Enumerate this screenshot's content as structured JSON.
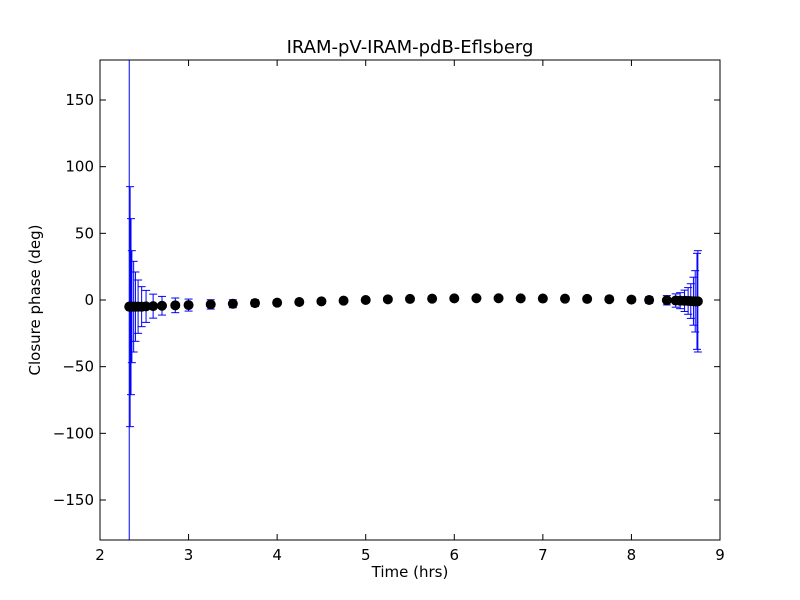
{
  "colors": {
    "errorbar": "#0000ff",
    "marker": "#000000",
    "axes": "#000000",
    "background": "#ffffff"
  },
  "chart_data": {
    "type": "scatter",
    "title": "IRAM-pV-IRAM-pdB-Eflsberg",
    "xlabel": "Time (hrs)",
    "ylabel": "Closure phase (deg)",
    "xlim": [
      2,
      9
    ],
    "ylim": [
      -180,
      180
    ],
    "xticks": [
      2,
      3,
      4,
      5,
      6,
      7,
      8,
      9
    ],
    "yticks": [
      -150,
      -100,
      -50,
      0,
      50,
      100,
      150
    ],
    "xtick_labels": [
      "2",
      "3",
      "4",
      "5",
      "6",
      "7",
      "8",
      "9"
    ],
    "ytick_labels": [
      "−150",
      "−100",
      "−50",
      "0",
      "50",
      "100",
      "150"
    ],
    "grid": false,
    "legend": "none",
    "series": [
      {
        "marker": "circle",
        "errorbars": true,
        "x": [
          2.33,
          2.34,
          2.35,
          2.36,
          2.38,
          2.4,
          2.43,
          2.47,
          2.52,
          2.6,
          2.7,
          2.85,
          3.0,
          3.25,
          3.5,
          3.75,
          4.0,
          4.25,
          4.5,
          4.75,
          5.0,
          5.25,
          5.5,
          5.75,
          6.0,
          6.25,
          6.5,
          6.75,
          7.0,
          7.25,
          7.5,
          7.75,
          8.0,
          8.2,
          8.4,
          8.5,
          8.55,
          8.6,
          8.64,
          8.67,
          8.7,
          8.72,
          8.74,
          8.75
        ],
        "y": [
          -5,
          -5,
          -5,
          -5,
          -5,
          -5,
          -5,
          -5,
          -4.8,
          -4.6,
          -4.3,
          -4,
          -3.8,
          -3.3,
          -2.8,
          -2.3,
          -2,
          -1.5,
          -1,
          -0.5,
          0,
          0.5,
          0.8,
          1,
          1.2,
          1.3,
          1.3,
          1.2,
          1.1,
          1,
          0.8,
          0.6,
          0.3,
          0,
          -0.2,
          -0.4,
          -0.5,
          -0.6,
          -0.7,
          -0.8,
          -0.9,
          -1,
          -1,
          -1
        ],
        "yerr": [
          190,
          90,
          66,
          42,
          34,
          26,
          20,
          15,
          12,
          9,
          7,
          5.5,
          4.5,
          3.5,
          3,
          2.5,
          2,
          2,
          1.8,
          1.8,
          1.8,
          1.8,
          1.8,
          1.8,
          1.8,
          1.8,
          1.8,
          1.8,
          1.8,
          1.8,
          1.8,
          2,
          2,
          2.5,
          3.5,
          5,
          6,
          8,
          10,
          13,
          18,
          23,
          36,
          38
        ]
      }
    ]
  }
}
